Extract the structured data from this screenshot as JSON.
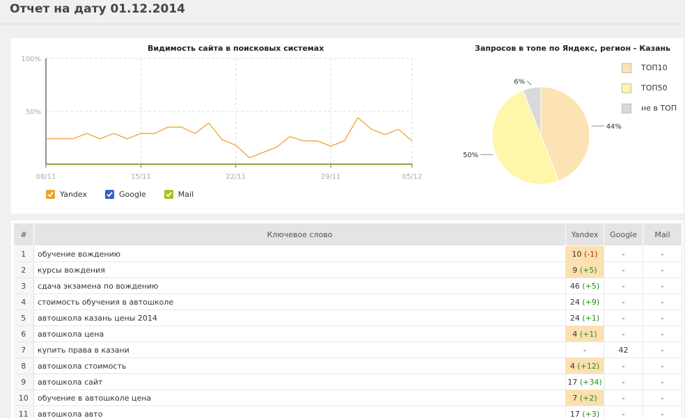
{
  "page": {
    "title": "Отчет на дату 01.12.2014"
  },
  "visibility_chart": {
    "title": "Видимость сайта в поисковых системах",
    "y_ticks": [
      "100%",
      "50%"
    ],
    "x_ticks": [
      "08/11",
      "15/11",
      "22/11",
      "29/11",
      "05/12"
    ],
    "legend": [
      {
        "label": "Yandex",
        "color": "#f0a030",
        "checked": true
      },
      {
        "label": "Google",
        "color": "#3a5fcd",
        "checked": true
      },
      {
        "label": "Mail",
        "color": "#a8c020",
        "checked": true
      }
    ]
  },
  "pie_chart": {
    "title": "Запросов в топе по Яндекс, регион - Казань",
    "legend": [
      {
        "label": "ТОП10",
        "color": "#fce3b4"
      },
      {
        "label": "ТОП50",
        "color": "#fef6a8"
      },
      {
        "label": "не в ТОП",
        "color": "#d9d9d9"
      }
    ],
    "labels": [
      "44%",
      "50%",
      "6%"
    ]
  },
  "chart_data": [
    {
      "type": "line",
      "title": "Видимость сайта в поисковых системах",
      "x": [
        "08/11",
        "09/11",
        "10/11",
        "11/11",
        "12/11",
        "13/11",
        "14/11",
        "15/11",
        "16/11",
        "17/11",
        "18/11",
        "19/11",
        "20/11",
        "21/11",
        "22/11",
        "23/11",
        "24/11",
        "25/11",
        "26/11",
        "27/11",
        "28/11",
        "29/11",
        "30/11",
        "01/12",
        "02/12",
        "03/12",
        "04/12",
        "05/12"
      ],
      "ylim": [
        0,
        100
      ],
      "y_ticks": [
        "100%",
        "50%"
      ],
      "x_ticks": [
        "08/11",
        "15/11",
        "22/11",
        "29/11",
        "05/12"
      ],
      "grid": true,
      "series": [
        {
          "name": "Yandex",
          "color": "#f0a030",
          "values": [
            24,
            24,
            24,
            29,
            24,
            29,
            24,
            29,
            29,
            35,
            35,
            29,
            39,
            23,
            18,
            6,
            11,
            16,
            26,
            22,
            22,
            17,
            22,
            44,
            33,
            28,
            33,
            22
          ]
        },
        {
          "name": "Google",
          "color": "#3a5fcd",
          "values": [
            0,
            0,
            0,
            0,
            0,
            0,
            0,
            0,
            0,
            0,
            0,
            0,
            0,
            0,
            0,
            0,
            0,
            0,
            0,
            0,
            0,
            0,
            0,
            0,
            0,
            0,
            0,
            0
          ]
        },
        {
          "name": "Mail",
          "color": "#a8c020",
          "values": [
            0,
            0,
            0,
            0,
            0,
            0,
            0,
            0,
            0,
            0,
            0,
            0,
            0,
            0,
            0,
            0,
            0,
            0,
            0,
            0,
            0,
            0,
            0,
            0,
            0,
            0,
            0,
            0
          ]
        }
      ],
      "legend_position": "bottom-left"
    },
    {
      "type": "pie",
      "title": "Запросов в топе по Яндекс, регион - Казань",
      "categories": [
        "ТОП10",
        "ТОП50",
        "не в ТОП"
      ],
      "values": [
        44,
        50,
        6
      ],
      "colors": [
        "#fce3b4",
        "#fef6a8",
        "#d9d9d9"
      ],
      "legend_position": "right"
    }
  ],
  "table": {
    "headers": [
      "#",
      "Ключевое слово",
      "Yandex",
      "Google",
      "Mail"
    ],
    "rows": [
      {
        "n": "1",
        "keyword": "обучение вождению",
        "yandex": "10",
        "change": "(-1)",
        "change_type": "neg",
        "yandex_hl": true,
        "google": "-",
        "mail": "-"
      },
      {
        "n": "2",
        "keyword": "курсы вождения",
        "yandex": "9",
        "change": "(+5)",
        "change_type": "pos",
        "yandex_hl": true,
        "google": "-",
        "mail": "-"
      },
      {
        "n": "3",
        "keyword": "сдача экзамена по вождению",
        "yandex": "46",
        "change": "(+5)",
        "change_type": "pos",
        "yandex_hl": false,
        "google": "-",
        "mail": "-"
      },
      {
        "n": "4",
        "keyword": "стоимость обучения в автошколе",
        "yandex": "24",
        "change": "(+9)",
        "change_type": "pos",
        "yandex_hl": false,
        "google": "-",
        "mail": "-"
      },
      {
        "n": "5",
        "keyword": "автошкола казань цены 2014",
        "yandex": "24",
        "change": "(+1)",
        "change_type": "pos",
        "yandex_hl": false,
        "google": "-",
        "mail": "-"
      },
      {
        "n": "6",
        "keyword": "автошкола цена",
        "yandex": "4",
        "change": "(+1)",
        "change_type": "pos",
        "yandex_hl": true,
        "google": "-",
        "mail": "-"
      },
      {
        "n": "7",
        "keyword": "купить права в казани",
        "yandex": "-",
        "change": "",
        "change_type": "",
        "yandex_hl": false,
        "google": "42",
        "mail": "-"
      },
      {
        "n": "8",
        "keyword": "автошкола стоимость",
        "yandex": "4",
        "change": "(+12)",
        "change_type": "pos",
        "yandex_hl": true,
        "google": "-",
        "mail": "-"
      },
      {
        "n": "9",
        "keyword": "автошкола сайт",
        "yandex": "17",
        "change": "(+34)",
        "change_type": "pos",
        "yandex_hl": false,
        "google": "-",
        "mail": "-"
      },
      {
        "n": "10",
        "keyword": "обучение в автошколе цена",
        "yandex": "7",
        "change": "(+2)",
        "change_type": "pos",
        "yandex_hl": true,
        "google": "-",
        "mail": "-"
      },
      {
        "n": "11",
        "keyword": "автошкола авто",
        "yandex": "17",
        "change": "(+3)",
        "change_type": "pos",
        "yandex_hl": false,
        "google": "-",
        "mail": "-"
      }
    ]
  }
}
